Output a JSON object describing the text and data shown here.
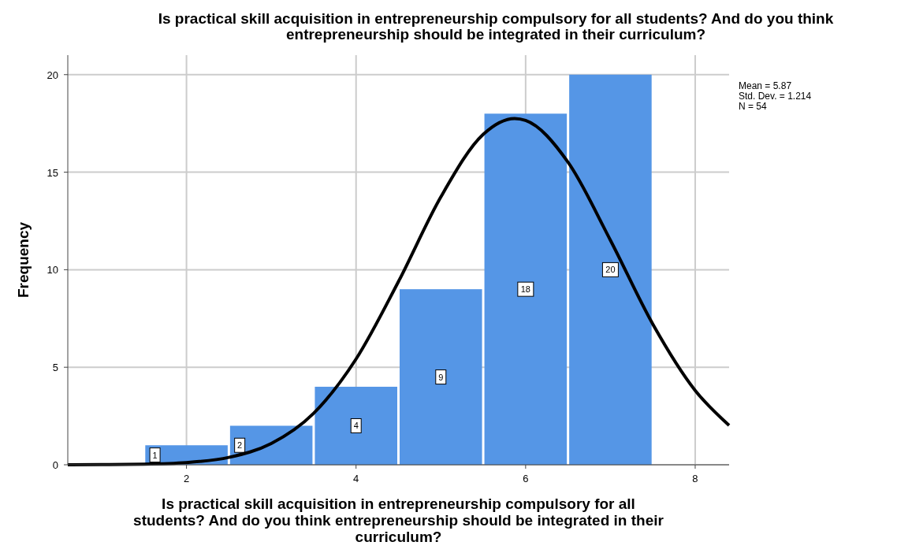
{
  "chart_data": {
    "type": "histogram",
    "title": "Is practical skill acquisition in entrepreneurship compulsory for all students? And do you think entrepreneurship should be integrated in their curriculum?",
    "xlabel": "Is practical skill acquisition in entrepreneurship compulsory for all students? And do you think entrepreneurship should be integrated in their curriculum?",
    "ylabel": "Frequency",
    "annotations": [
      "Mean = 5.87",
      "Std. Dev. = 1.214",
      "N = 54"
    ],
    "bins": [
      1.5,
      2.5,
      3.5,
      4.5,
      5.5,
      6.5,
      7.5
    ],
    "series": [
      {
        "type": "histogram",
        "color": "#5596e6",
        "values": [
          1,
          2,
          4,
          9,
          18,
          20
        ],
        "value_labels": [
          "1",
          "2",
          "4",
          "9",
          "18",
          "20"
        ]
      },
      {
        "type": "line",
        "color": "#000000",
        "x": [
          0.6,
          1,
          1.5,
          2,
          2.5,
          3,
          3.5,
          4,
          4.5,
          5,
          5.5,
          5.87,
          6,
          6.5,
          7,
          7.5,
          8,
          8.4
        ],
        "values": [
          0,
          0.01,
          0.03,
          0.11,
          0.38,
          1.09,
          2.64,
          5.42,
          9.39,
          13.73,
          16.94,
          17.75,
          17.65,
          15.51,
          11.51,
          7.21,
          3.81,
          2.02
        ]
      }
    ],
    "xlim": [
      0.6,
      8.4
    ],
    "ylim": [
      0,
      21
    ],
    "xticks": [
      2,
      4,
      6,
      8
    ],
    "yticks": [
      0,
      5,
      10,
      15,
      20
    ],
    "grid": true
  }
}
